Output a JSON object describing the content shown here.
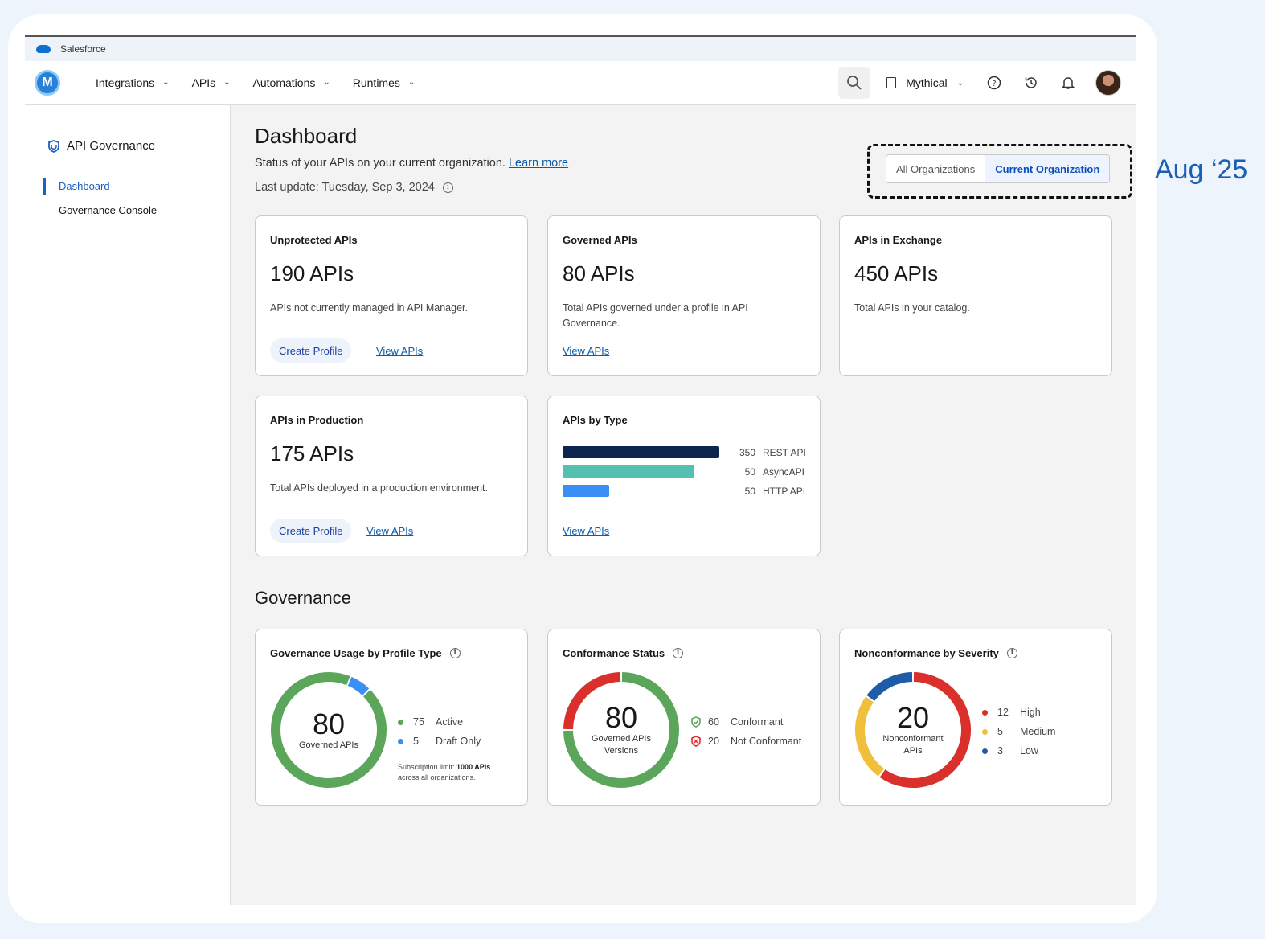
{
  "brand_bar": {
    "label": "Salesforce"
  },
  "topnav": {
    "logo_letter": "M",
    "items": [
      {
        "label": "Integrations"
      },
      {
        "label": "APIs"
      },
      {
        "label": "Automations"
      },
      {
        "label": "Runtimes"
      }
    ],
    "org_label": "Mythical"
  },
  "sidebar": {
    "title": "API Governance",
    "items": [
      {
        "label": "Dashboard",
        "active": true
      },
      {
        "label": "Governance Console",
        "active": false
      }
    ]
  },
  "page": {
    "title": "Dashboard",
    "subtitle": "Status of your APIs on your current organization.",
    "learn_more": "Learn more",
    "last_update": "Last update: Tuesday, Sep 3, 2024"
  },
  "org_toggle": {
    "options": [
      "All Organizations",
      "Current Organization"
    ],
    "selected": "Current Organization"
  },
  "cards": {
    "unprotected": {
      "title": "Unprotected APIs",
      "value": "190 APIs",
      "desc": "APIs not currently managed in API Manager.",
      "button": "Create Profile",
      "link": "View APIs"
    },
    "governed": {
      "title": "Governed APIs",
      "value": "80 APIs",
      "desc": "Total APIs governed under a profile in API Governance.",
      "link": "View APIs"
    },
    "exchange": {
      "title": "APIs in Exchange",
      "value": "450 APIs",
      "desc": "Total APIs in your catalog."
    },
    "production": {
      "title": "APIs in Production",
      "value": "175 APIs",
      "desc": "Total APIs deployed in a production environment.",
      "button": "Create Profile",
      "link": "View APIs"
    },
    "by_type": {
      "title": "APIs by Type",
      "link": "View APIs",
      "rows": [
        {
          "value": 350,
          "label": "REST API",
          "color": "#0b2750"
        },
        {
          "value": 50,
          "label": "AsyncAPI",
          "color": "#53c0b0"
        },
        {
          "value": 50,
          "label": "HTTP API",
          "color": "#3b8ef3"
        }
      ]
    }
  },
  "governance": {
    "title": "Governance",
    "usage": {
      "title": "Governance Usage by Profile Type",
      "total": "80",
      "center_label": "Governed APIs",
      "segments": [
        {
          "value": 75,
          "label": "Active",
          "color": "#5ba65b"
        },
        {
          "value": 5,
          "label": "Draft Only",
          "color": "#3b8ef3"
        }
      ],
      "note_prefix": "Subscription limit:",
      "note_bold": "1000 APIs",
      "note_suffix": "across all organizations."
    },
    "conformance": {
      "title": "Conformance Status",
      "total": "80",
      "center_label": "Governed APIs Versions",
      "segments": [
        {
          "value": 60,
          "label": "Conformant",
          "color": "#5ba65b"
        },
        {
          "value": 20,
          "label": "Not Conformant",
          "color": "#d9302b"
        }
      ]
    },
    "severity": {
      "title": "Nonconformance by Severity",
      "total": "20",
      "center_label": "Nonconformant APIs",
      "segments": [
        {
          "value": 12,
          "label": "High",
          "color": "#d9302b"
        },
        {
          "value": 5,
          "label": "Medium",
          "color": "#f0bf3c"
        },
        {
          "value": 3,
          "label": "Low",
          "color": "#1f5ca8"
        }
      ]
    }
  },
  "annotation": {
    "label": "Aug ‘25"
  }
}
